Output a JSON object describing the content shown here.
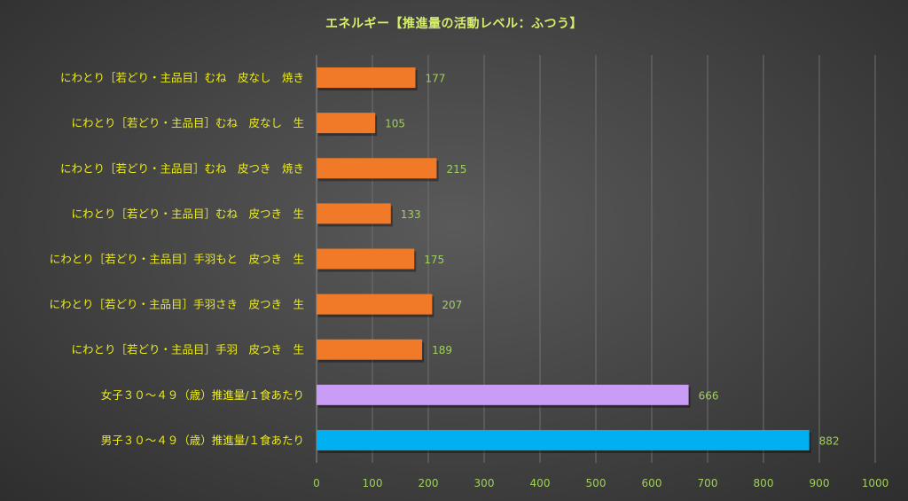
{
  "chart_data": {
    "type": "bar",
    "orientation": "horizontal",
    "title": "エネルギー【推進量の活動レベル：ふつう】",
    "xlabel": "",
    "ylabel": "",
    "xlim": [
      0,
      1000
    ],
    "ticks": [
      0,
      100,
      200,
      300,
      400,
      500,
      600,
      700,
      800,
      900,
      1000
    ],
    "grid": true,
    "legend": "none",
    "categories": [
      "にわとり［若どり・主品目］むね　皮なし　焼き",
      "にわとり［若どり・主品目］むね　皮なし　生",
      "にわとり［若どり・主品目］むね　皮つき　焼き",
      "にわとり［若どり・主品目］むね　皮つき　生",
      "にわとり［若どり・主品目］手羽もと　皮つき　生",
      "にわとり［若どり・主品目］手羽さき　皮つき　生",
      "にわとり［若どり・主品目］手羽　皮つき　生",
      "女子３０～４９（歳）推進量/１食あたり",
      "男子３０～４９（歳）推進量/１食あたり"
    ],
    "values": [
      177,
      105,
      215,
      133,
      175,
      207,
      189,
      666,
      882
    ],
    "bar_colors": [
      "#f07a28",
      "#f07a28",
      "#f07a28",
      "#f07a28",
      "#f07a28",
      "#f07a28",
      "#f07a28",
      "#c99cf5",
      "#00b0f0"
    ]
  }
}
